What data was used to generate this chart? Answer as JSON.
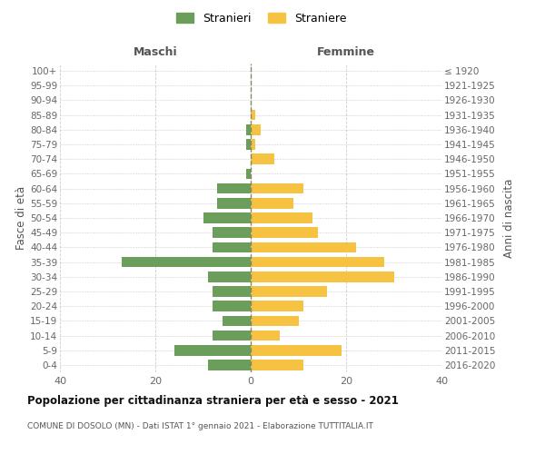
{
  "age_groups": [
    "0-4",
    "5-9",
    "10-14",
    "15-19",
    "20-24",
    "25-29",
    "30-34",
    "35-39",
    "40-44",
    "45-49",
    "50-54",
    "55-59",
    "60-64",
    "65-69",
    "70-74",
    "75-79",
    "80-84",
    "85-89",
    "90-94",
    "95-99",
    "100+"
  ],
  "birth_years": [
    "2016-2020",
    "2011-2015",
    "2006-2010",
    "2001-2005",
    "1996-2000",
    "1991-1995",
    "1986-1990",
    "1981-1985",
    "1976-1980",
    "1971-1975",
    "1966-1970",
    "1961-1965",
    "1956-1960",
    "1951-1955",
    "1946-1950",
    "1941-1945",
    "1936-1940",
    "1931-1935",
    "1926-1930",
    "1921-1925",
    "≤ 1920"
  ],
  "maschi": [
    9,
    16,
    8,
    6,
    8,
    8,
    9,
    27,
    8,
    8,
    10,
    7,
    7,
    1,
    0,
    1,
    1,
    0,
    0,
    0,
    0
  ],
  "femmine": [
    11,
    19,
    6,
    10,
    11,
    16,
    30,
    28,
    22,
    14,
    13,
    9,
    11,
    0,
    5,
    1,
    2,
    1,
    0,
    0,
    0
  ],
  "color_maschi": "#6a9e5a",
  "color_femmine": "#f5c242",
  "title": "Popolazione per cittadinanza straniera per età e sesso - 2021",
  "subtitle": "COMUNE DI DOSOLO (MN) - Dati ISTAT 1° gennaio 2021 - Elaborazione TUTTITALIA.IT",
  "xlabel_left": "Maschi",
  "xlabel_right": "Femmine",
  "ylabel_left": "Fasce di età",
  "ylabel_right": "Anni di nascita",
  "xlim": 40,
  "legend_maschi": "Stranieri",
  "legend_femmine": "Straniere",
  "background_color": "#ffffff",
  "grid_color": "#cccccc"
}
